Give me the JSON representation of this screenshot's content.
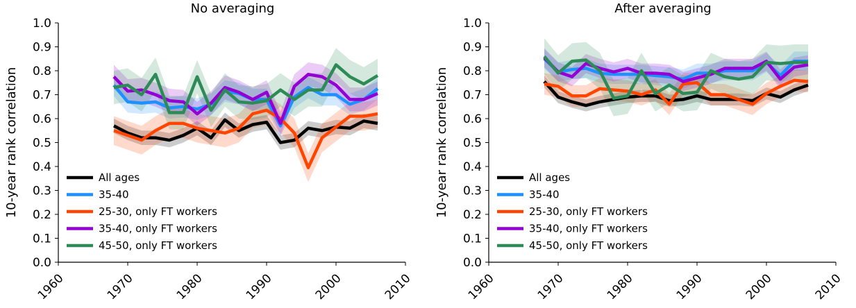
{
  "colors": {
    "All ages": "#000000",
    "35-40": "#1e90ff",
    "25-30, only FT workers": "#ff4500",
    "35-40, only FT workers": "#9400d3",
    "45-50, only FT workers": "#2e8b57"
  },
  "chart_data": [
    {
      "type": "line",
      "title": "No averaging",
      "xlabel": "",
      "ylabel": "10-year rank correlation",
      "xlim": [
        1960,
        2010
      ],
      "ylim": [
        0.0,
        1.0
      ],
      "xticks": [
        "1960",
        "1970",
        "1980",
        "1990",
        "2000",
        "2010"
      ],
      "yticks": [
        "0.0",
        "0.1",
        "0.2",
        "0.3",
        "0.4",
        "0.5",
        "0.6",
        "0.7",
        "0.8",
        "0.9",
        "1.0"
      ],
      "legend_position": "lower-left",
      "grid": false,
      "x": [
        1968,
        1970,
        1972,
        1974,
        1976,
        1978,
        1980,
        1982,
        1984,
        1986,
        1988,
        1990,
        1992,
        1994,
        1996,
        1998,
        2000,
        2002,
        2004,
        2006
      ],
      "series": [
        {
          "name": "All ages",
          "values": [
            0.57,
            0.54,
            0.52,
            0.52,
            0.51,
            0.53,
            0.56,
            0.52,
            0.595,
            0.55,
            0.575,
            0.585,
            0.5,
            0.51,
            0.56,
            0.55,
            0.565,
            0.56,
            0.59,
            0.58
          ],
          "band": 0.03
        },
        {
          "name": "35-40",
          "values": [
            0.74,
            0.67,
            0.665,
            0.67,
            0.645,
            0.65,
            0.64,
            0.66,
            0.715,
            0.705,
            0.68,
            0.68,
            0.57,
            0.69,
            0.73,
            0.7,
            0.7,
            0.66,
            0.68,
            0.725
          ],
          "band": 0.045
        },
        {
          "name": "25-30, only FT workers",
          "values": [
            0.55,
            0.53,
            0.51,
            0.55,
            0.58,
            0.58,
            0.56,
            0.55,
            0.54,
            0.56,
            0.62,
            0.635,
            0.6,
            0.54,
            0.395,
            0.52,
            0.565,
            0.61,
            0.61,
            0.62
          ],
          "band": 0.06
        },
        {
          "name": "35-40, only FT workers",
          "values": [
            0.775,
            0.715,
            0.72,
            0.7,
            0.675,
            0.67,
            0.62,
            0.665,
            0.73,
            0.71,
            0.68,
            0.71,
            0.58,
            0.735,
            0.785,
            0.775,
            0.74,
            0.68,
            0.68,
            0.705
          ],
          "band": 0.05
        },
        {
          "name": "45-50, only FT workers",
          "values": [
            0.73,
            0.74,
            0.7,
            0.785,
            0.625,
            0.625,
            0.775,
            0.635,
            0.72,
            0.67,
            0.665,
            0.675,
            0.72,
            0.68,
            0.72,
            0.72,
            0.825,
            0.775,
            0.745,
            0.78
          ],
          "band": 0.07
        }
      ]
    },
    {
      "type": "line",
      "title": "After averaging",
      "xlabel": "",
      "ylabel": "10-year rank correlation",
      "xlim": [
        1960,
        2010
      ],
      "ylim": [
        0.0,
        1.0
      ],
      "xticks": [
        "1960",
        "1970",
        "1980",
        "1990",
        "2000",
        "2010"
      ],
      "yticks": [
        "0.0",
        "0.1",
        "0.2",
        "0.3",
        "0.4",
        "0.5",
        "0.6",
        "0.7",
        "0.8",
        "0.9",
        "1.0"
      ],
      "legend_position": "lower-left",
      "grid": false,
      "x": [
        1968,
        1970,
        1972,
        1974,
        1976,
        1978,
        1980,
        1982,
        1984,
        1986,
        1988,
        1990,
        1992,
        1994,
        1996,
        1998,
        2000,
        2002,
        2004,
        2006
      ],
      "series": [
        {
          "name": "All ages",
          "values": [
            0.755,
            0.69,
            0.67,
            0.655,
            0.67,
            0.68,
            0.69,
            0.695,
            0.695,
            0.675,
            0.68,
            0.695,
            0.68,
            0.68,
            0.68,
            0.675,
            0.705,
            0.69,
            0.72,
            0.74
          ],
          "band": 0.025
        },
        {
          "name": "35-40",
          "values": [
            0.85,
            0.795,
            0.805,
            0.81,
            0.79,
            0.785,
            0.785,
            0.785,
            0.78,
            0.775,
            0.765,
            0.79,
            0.79,
            0.8,
            0.8,
            0.8,
            0.835,
            0.78,
            0.84,
            0.84
          ],
          "band": 0.04
        },
        {
          "name": "25-30, only FT workers",
          "values": [
            0.745,
            0.735,
            0.695,
            0.695,
            0.725,
            0.72,
            0.715,
            0.7,
            0.72,
            0.66,
            0.745,
            0.75,
            0.7,
            0.7,
            0.68,
            0.66,
            0.705,
            0.735,
            0.76,
            0.755
          ],
          "band": 0.045
        },
        {
          "name": "35-40, only FT workers",
          "values": [
            0.855,
            0.795,
            0.775,
            0.83,
            0.81,
            0.795,
            0.81,
            0.79,
            0.79,
            0.785,
            0.755,
            0.77,
            0.785,
            0.81,
            0.81,
            0.81,
            0.84,
            0.765,
            0.815,
            0.825
          ],
          "band": 0.04
        },
        {
          "name": "45-50, only FT workers",
          "values": [
            0.86,
            0.79,
            0.84,
            0.845,
            0.8,
            0.685,
            0.695,
            0.8,
            0.705,
            0.74,
            0.705,
            0.71,
            0.8,
            0.775,
            0.765,
            0.775,
            0.835,
            0.83,
            0.835,
            0.835
          ],
          "band": 0.075
        }
      ]
    }
  ]
}
